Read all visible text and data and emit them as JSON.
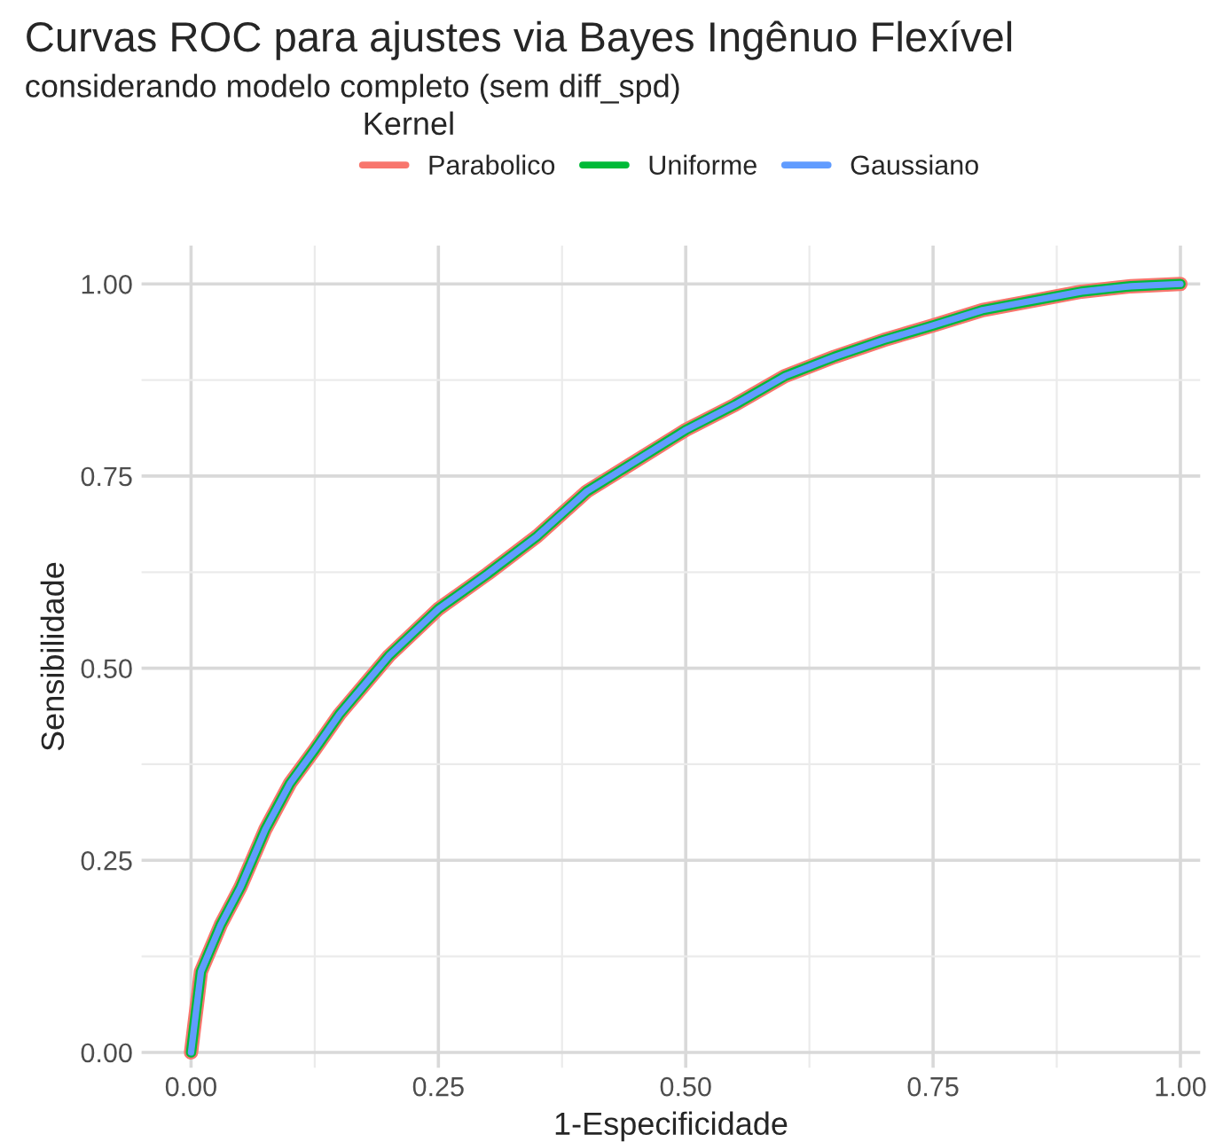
{
  "chart_data": {
    "type": "line",
    "title": "Curvas ROC para ajustes via Bayes Ingênuo Flexível",
    "subtitle": "considerando modelo completo (sem diff_spd)",
    "xlabel": "1-Especificidade",
    "ylabel": "Sensibilidade",
    "legend_title": "Kernel",
    "legend": "top",
    "grid": true,
    "x": [
      0,
      0.01,
      0.03,
      0.05,
      0.075,
      0.1,
      0.125,
      0.15,
      0.2,
      0.25,
      0.3,
      0.35,
      0.4,
      0.45,
      0.5,
      0.55,
      0.6,
      0.65,
      0.7,
      0.75,
      0.8,
      0.85,
      0.9,
      0.95,
      1
    ],
    "series": [
      {
        "name": "Parabolico",
        "color": "#f8766d",
        "values": [
          0,
          0.105,
          0.166,
          0.215,
          0.29,
          0.35,
          0.394,
          0.44,
          0.516,
          0.577,
          0.623,
          0.672,
          0.73,
          0.77,
          0.81,
          0.843,
          0.88,
          0.905,
          0.927,
          0.946,
          0.966,
          0.978,
          0.99,
          0.997,
          1
        ]
      },
      {
        "name": "Uniforme",
        "color": "#00ba38",
        "values": [
          0,
          0.105,
          0.166,
          0.215,
          0.29,
          0.35,
          0.394,
          0.44,
          0.516,
          0.577,
          0.623,
          0.672,
          0.73,
          0.77,
          0.81,
          0.843,
          0.88,
          0.905,
          0.927,
          0.946,
          0.966,
          0.978,
          0.99,
          0.997,
          1
        ]
      },
      {
        "name": "Gaussiano",
        "color": "#619cff",
        "values": [
          0,
          0.105,
          0.166,
          0.215,
          0.29,
          0.35,
          0.394,
          0.44,
          0.516,
          0.577,
          0.623,
          0.672,
          0.73,
          0.77,
          0.81,
          0.843,
          0.88,
          0.905,
          0.927,
          0.946,
          0.966,
          0.978,
          0.99,
          0.997,
          1
        ]
      }
    ],
    "xlim": [
      -0.05,
      1.02
    ],
    "ylim": [
      -0.02,
      1.05
    ],
    "xticks": [
      {
        "value": 0,
        "label": "0.00"
      },
      {
        "value": 0.25,
        "label": "0.25"
      },
      {
        "value": 0.5,
        "label": "0.50"
      },
      {
        "value": 0.75,
        "label": "0.75"
      },
      {
        "value": 1,
        "label": "1.00"
      }
    ],
    "yticks": [
      {
        "value": 0,
        "label": "0.00"
      },
      {
        "value": 0.25,
        "label": "0.25"
      },
      {
        "value": 0.5,
        "label": "0.50"
      },
      {
        "value": 0.75,
        "label": "0.75"
      },
      {
        "value": 1,
        "label": "1.00"
      }
    ]
  }
}
